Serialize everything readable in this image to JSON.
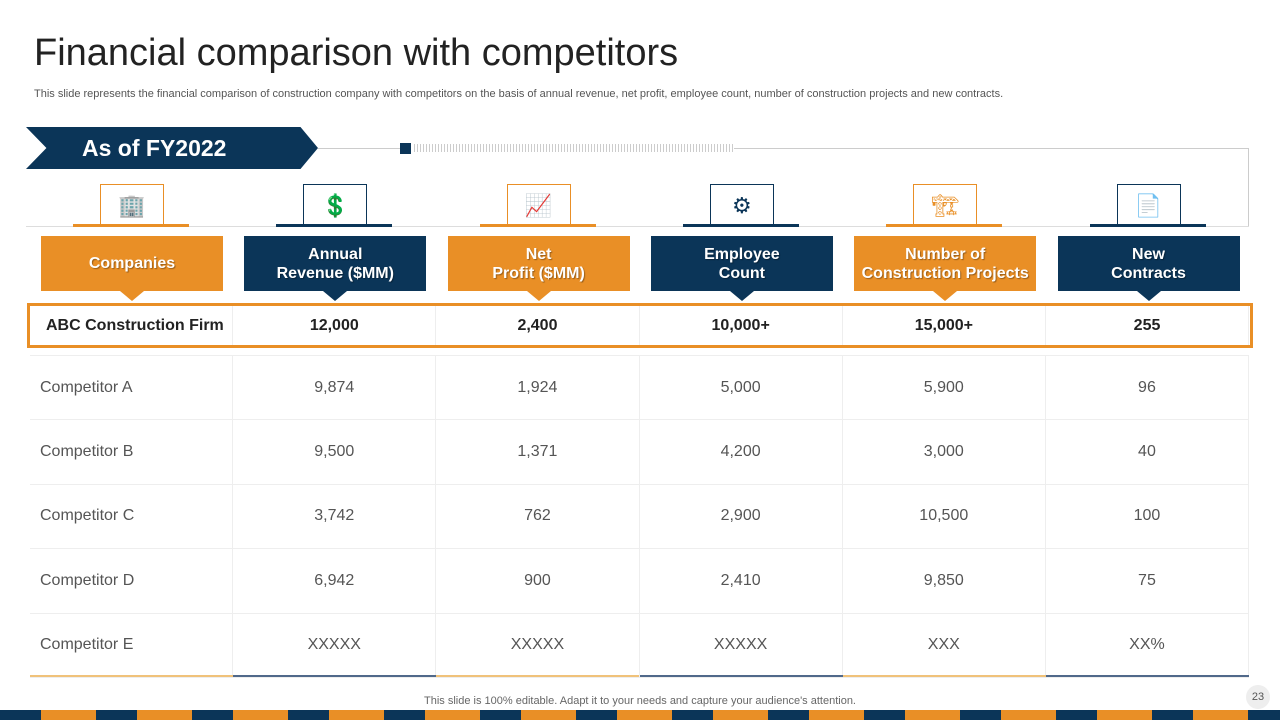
{
  "title": "Financial comparison with competitors",
  "subtitle": "This slide represents the financial comparison of construction company with competitors on the basis of annual revenue, net profit, employee count, number of construction projects and new contracts.",
  "banner": "As of FY2022",
  "colors": {
    "orange": "#e98f26",
    "navy": "#0b3558"
  },
  "columns": [
    {
      "label": "Companies",
      "icon": "building-hand-icon",
      "style": "orange"
    },
    {
      "label": "Annual\nRevenue ($MM)",
      "icon": "dollar-growth-icon",
      "style": "navy"
    },
    {
      "label": "Net\nProfit ($MM)",
      "icon": "profit-hand-icon",
      "style": "orange"
    },
    {
      "label": "Employee\nCount",
      "icon": "team-gear-icon",
      "style": "navy"
    },
    {
      "label": "Number of\nConstruction Projects",
      "icon": "crane-icon",
      "style": "orange"
    },
    {
      "label": "New\nContracts",
      "icon": "contract-document-icon",
      "style": "navy"
    }
  ],
  "highlight_row": [
    "ABC Construction Firm",
    "12,000",
    "2,400",
    "10,000+",
    "15,000+",
    "255"
  ],
  "rows": [
    [
      "Competitor A",
      "9,874",
      "1,924",
      "5,000",
      "5,900",
      "96"
    ],
    [
      "Competitor B",
      "9,500",
      "1,371",
      "4,200",
      "3,000",
      "40"
    ],
    [
      "Competitor C",
      "3,742",
      "762",
      "2,900",
      "10,500",
      "100"
    ],
    [
      "Competitor D",
      "6,942",
      "900",
      "2,410",
      "9,850",
      "75"
    ],
    [
      "Competitor E",
      "XXXXX",
      "XXXXX",
      "XXXXX",
      "XXX",
      "XX%"
    ]
  ],
  "footer": "This slide is 100% editable. Adapt it to your needs and capture your audience's attention.",
  "page_number": "23"
}
